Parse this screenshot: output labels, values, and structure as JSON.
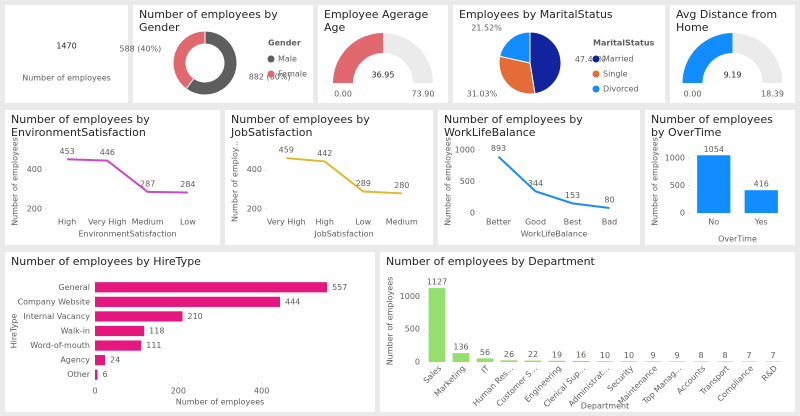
{
  "chart_data": [
    {
      "type": "card",
      "value": 1470,
      "label": "Number of employees"
    },
    {
      "type": "donut",
      "title": "Number of employees by Gender",
      "legend_title": "Gender",
      "categories": [
        "Male",
        "Female"
      ],
      "values": [
        882,
        588
      ],
      "value_labels": [
        "882 (60%)",
        "588 (40%)"
      ],
      "colors": [
        "#5e5e5e",
        "#e0686e"
      ]
    },
    {
      "type": "gauge",
      "title": "Employee Agerage Age",
      "value": 36.95,
      "color": "#e0686e",
      "ylim": [
        0,
        73.9
      ],
      "yticks": [
        {
          "value": 0,
          "label": "0.00"
        },
        {
          "value": 73.9,
          "label": "73.90"
        }
      ]
    },
    {
      "type": "pie",
      "title": "Employees by MaritalStatus",
      "legend_title": "MaritalStatus",
      "categories": [
        "Married",
        "Single",
        "Divorced"
      ],
      "values": [
        47.46,
        31.03,
        21.52
      ],
      "value_labels": [
        "47.46%",
        "31.03%",
        "21.52%"
      ],
      "colors": [
        "#12239e",
        "#e66c37",
        "#118dff"
      ]
    },
    {
      "type": "gauge",
      "title": "Avg Distance from Home",
      "value": 9.19,
      "color": "#118dff",
      "ylim": [
        0,
        18.39
      ],
      "yticks": [
        {
          "value": 0,
          "label": "0.00"
        },
        {
          "value": 18.39,
          "label": "18.39"
        }
      ]
    },
    {
      "type": "line",
      "title": "Number of employees by EnvironmentSatisfaction",
      "categories": [
        "High",
        "Very High",
        "Medium",
        "Low"
      ],
      "values": [
        453,
        446,
        287,
        284
      ],
      "x_label": "EnvironmentSatisfaction",
      "y_label": "Number of employees",
      "color": "#d246c5",
      "ylim": [
        180,
        500
      ],
      "yticks": [
        200,
        400
      ]
    },
    {
      "type": "line",
      "title": "Number of employees by JobSatisfaction",
      "categories": [
        "Very High",
        "High",
        "Low",
        "Medium"
      ],
      "values": [
        459,
        442,
        289,
        280
      ],
      "x_label": "JobSatisfaction",
      "y_label": "Number of employ...",
      "color": "#e0b92a",
      "ylim": [
        180,
        500
      ],
      "yticks": [
        200,
        400
      ]
    },
    {
      "type": "line",
      "title": "Number of employees by WorkLifeBalance",
      "categories": [
        "Better",
        "Good",
        "Best",
        "Bad"
      ],
      "values": [
        893,
        344,
        153,
        80
      ],
      "x_label": "WorkLifeBalance",
      "y_label": "Number of employees",
      "color": "#1a8cff",
      "ylim": [
        0,
        1000
      ],
      "yticks": [
        0,
        500,
        1000
      ]
    },
    {
      "type": "bar",
      "title": "Number of employees by OverTime",
      "categories": [
        "No",
        "Yes"
      ],
      "values": [
        1054,
        416
      ],
      "x_label": "OverTime",
      "y_label": "Number of employees",
      "color": "#118dff",
      "ylim": [
        0,
        1150
      ],
      "yticks": [
        0,
        500,
        1000
      ]
    },
    {
      "type": "barh",
      "title": "Number of employees by HireType",
      "categories": [
        "General",
        "Company Website",
        "Internal Vacancy",
        "Walk-in",
        "Word-of-mouth",
        "Agency",
        "Other"
      ],
      "values": [
        557,
        444,
        210,
        118,
        111,
        24,
        6
      ],
      "x_label": "Number of employees",
      "y_label": "HireType",
      "color": "#e6177e",
      "xlim": [
        0,
        600
      ],
      "xticks": [
        0,
        200,
        400
      ]
    },
    {
      "type": "bar",
      "title": "Number of employees by Department",
      "categories": [
        "Sales",
        "Marketing",
        "IT",
        "Human Res...",
        "Customer S...",
        "Engineering",
        "Clerical Sup...",
        "Administrat...",
        "Security",
        "Maintenance",
        "Top Manag...",
        "Accounts",
        "Transport",
        "Compliance",
        "R&D"
      ],
      "values": [
        1127,
        136,
        56,
        26,
        22,
        19,
        16,
        10,
        10,
        9,
        9,
        8,
        8,
        7,
        7
      ],
      "x_label": "Department",
      "y_label": "Number of employees",
      "color": "#95e06c",
      "ylim": [
        0,
        1250
      ],
      "yticks": [
        0,
        500,
        1000
      ]
    }
  ]
}
